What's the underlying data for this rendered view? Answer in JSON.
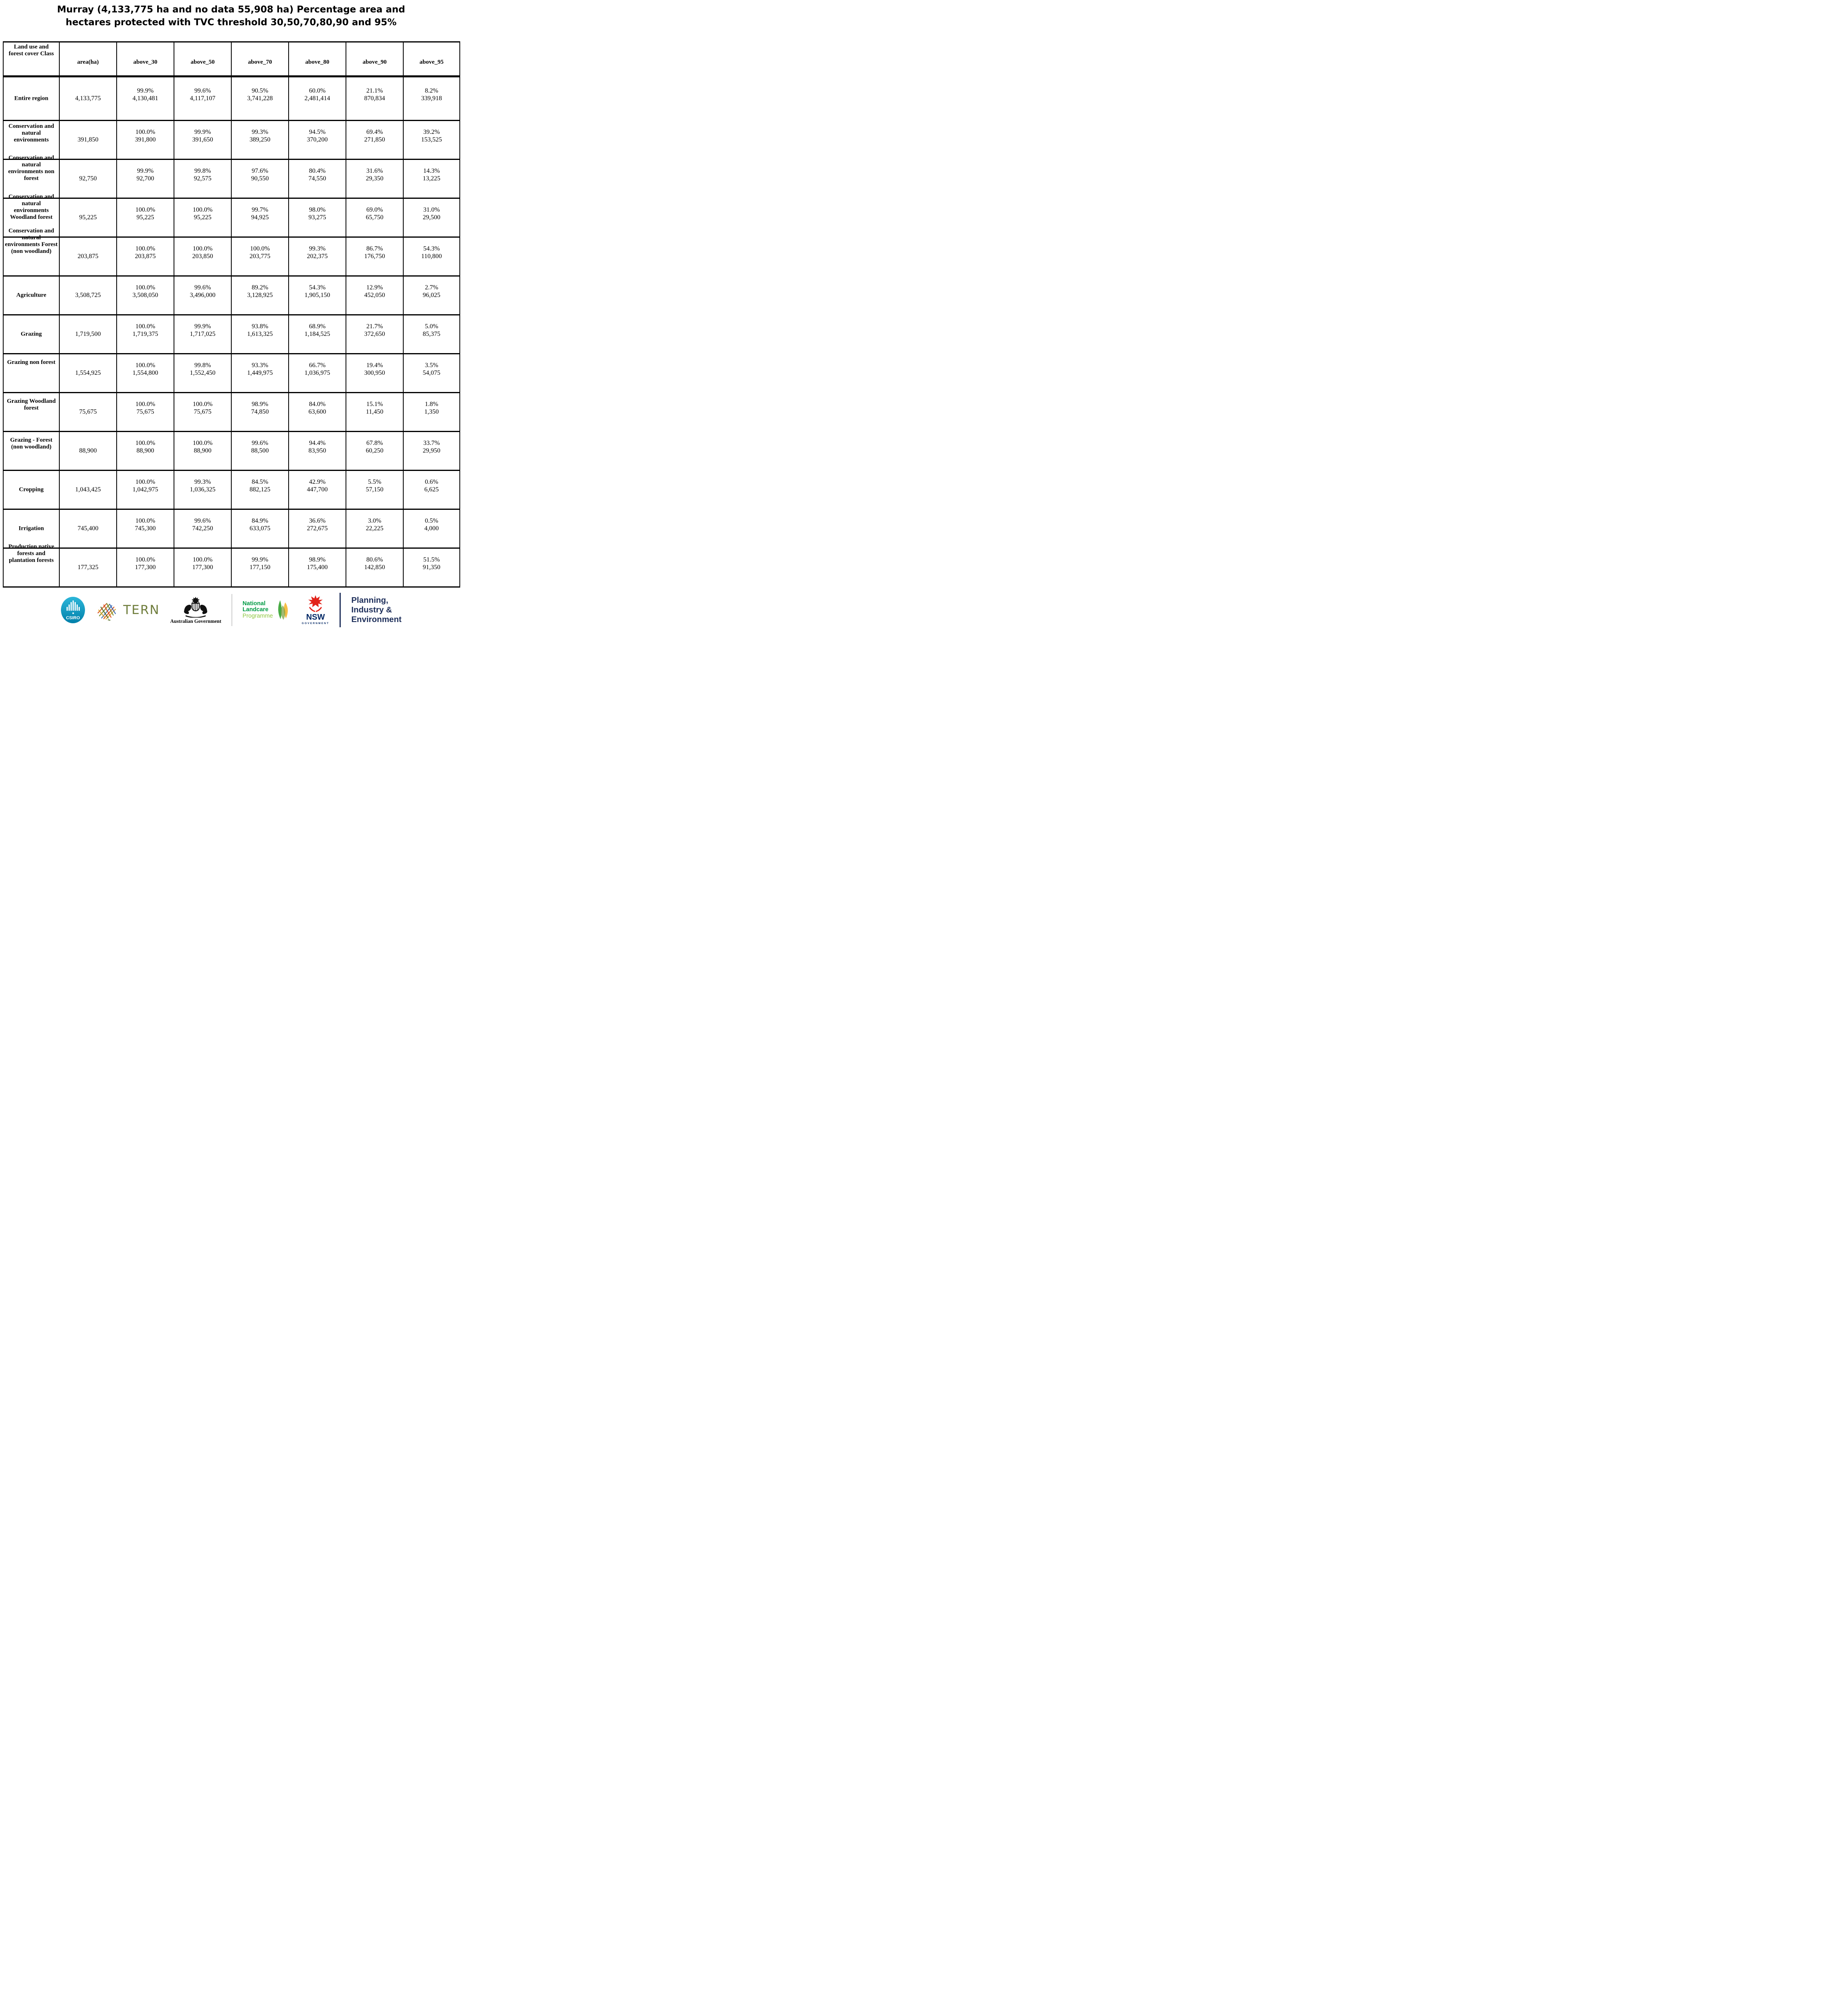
{
  "title": {
    "line1": "Murray (4,133,775 ha and no data 55,908 ha) Percentage area and",
    "line2": "hectares protected with TVC threshold 30,50,70,80,90 and 95%"
  },
  "table": {
    "columns": [
      "Land use and forest cover Class",
      "area(ha)",
      "above_30",
      "above_50",
      "above_70",
      "above_80",
      "above_90",
      "above_95"
    ],
    "rows": [
      {
        "label": "Entire region",
        "area": "4,133,775",
        "cells": [
          [
            "99.9%",
            "4,130,481"
          ],
          [
            "99.6%",
            "4,117,107"
          ],
          [
            "90.5%",
            "3,741,228"
          ],
          [
            "60.0%",
            "2,481,414"
          ],
          [
            "21.1%",
            "870,834"
          ],
          [
            "8.2%",
            "339,918"
          ]
        ]
      },
      {
        "label": "Conservation and natural environments",
        "area": "391,850",
        "cells": [
          [
            "100.0%",
            "391,800"
          ],
          [
            "99.9%",
            "391,650"
          ],
          [
            "99.3%",
            "389,250"
          ],
          [
            "94.5%",
            "370,200"
          ],
          [
            "69.4%",
            "271,850"
          ],
          [
            "39.2%",
            "153,525"
          ]
        ]
      },
      {
        "label": "Conservation and natural environments non forest",
        "area": "92,750",
        "cells": [
          [
            "99.9%",
            "92,700"
          ],
          [
            "99.8%",
            "92,575"
          ],
          [
            "97.6%",
            "90,550"
          ],
          [
            "80.4%",
            "74,550"
          ],
          [
            "31.6%",
            "29,350"
          ],
          [
            "14.3%",
            "13,225"
          ]
        ]
      },
      {
        "label": "Conservation and natural environments Woodland forest",
        "area": "95,225",
        "cells": [
          [
            "100.0%",
            "95,225"
          ],
          [
            "100.0%",
            "95,225"
          ],
          [
            "99.7%",
            "94,925"
          ],
          [
            "98.0%",
            "93,275"
          ],
          [
            "69.0%",
            "65,750"
          ],
          [
            "31.0%",
            "29,500"
          ]
        ]
      },
      {
        "label": "Conservation and natural environments Forest (non woodland)",
        "area": "203,875",
        "cells": [
          [
            "100.0%",
            "203,875"
          ],
          [
            "100.0%",
            "203,850"
          ],
          [
            "100.0%",
            "203,775"
          ],
          [
            "99.3%",
            "202,375"
          ],
          [
            "86.7%",
            "176,750"
          ],
          [
            "54.3%",
            "110,800"
          ]
        ]
      },
      {
        "label": "Agriculture",
        "area": "3,508,725",
        "cells": [
          [
            "100.0%",
            "3,508,050"
          ],
          [
            "99.6%",
            "3,496,000"
          ],
          [
            "89.2%",
            "3,128,925"
          ],
          [
            "54.3%",
            "1,905,150"
          ],
          [
            "12.9%",
            "452,050"
          ],
          [
            "2.7%",
            "96,025"
          ]
        ]
      },
      {
        "label": "Grazing",
        "area": "1,719,500",
        "cells": [
          [
            "100.0%",
            "1,719,375"
          ],
          [
            "99.9%",
            "1,717,025"
          ],
          [
            "93.8%",
            "1,613,325"
          ],
          [
            "68.9%",
            "1,184,525"
          ],
          [
            "21.7%",
            "372,650"
          ],
          [
            "5.0%",
            "85,375"
          ]
        ]
      },
      {
        "label": "Grazing non forest",
        "area": "1,554,925",
        "cells": [
          [
            "100.0%",
            "1,554,800"
          ],
          [
            "99.8%",
            "1,552,450"
          ],
          [
            "93.3%",
            "1,449,975"
          ],
          [
            "66.7%",
            "1,036,975"
          ],
          [
            "19.4%",
            "300,950"
          ],
          [
            "3.5%",
            "54,075"
          ]
        ]
      },
      {
        "label": "Grazing Woodland forest",
        "area": "75,675",
        "cells": [
          [
            "100.0%",
            "75,675"
          ],
          [
            "100.0%",
            "75,675"
          ],
          [
            "98.9%",
            "74,850"
          ],
          [
            "84.0%",
            "63,600"
          ],
          [
            "15.1%",
            "11,450"
          ],
          [
            "1.8%",
            "1,350"
          ]
        ]
      },
      {
        "label": "Grazing - Forest (non woodland)",
        "area": "88,900",
        "cells": [
          [
            "100.0%",
            "88,900"
          ],
          [
            "100.0%",
            "88,900"
          ],
          [
            "99.6%",
            "88,500"
          ],
          [
            "94.4%",
            "83,950"
          ],
          [
            "67.8%",
            "60,250"
          ],
          [
            "33.7%",
            "29,950"
          ]
        ]
      },
      {
        "label": "Cropping",
        "area": "1,043,425",
        "cells": [
          [
            "100.0%",
            "1,042,975"
          ],
          [
            "99.3%",
            "1,036,325"
          ],
          [
            "84.5%",
            "882,125"
          ],
          [
            "42.9%",
            "447,700"
          ],
          [
            "5.5%",
            "57,150"
          ],
          [
            "0.6%",
            "6,625"
          ]
        ]
      },
      {
        "label": "Irrigation",
        "area": "745,400",
        "cells": [
          [
            "100.0%",
            "745,300"
          ],
          [
            "99.6%",
            "742,250"
          ],
          [
            "84.9%",
            "633,075"
          ],
          [
            "36.6%",
            "272,675"
          ],
          [
            "3.0%",
            "22,225"
          ],
          [
            "0.5%",
            "4,000"
          ]
        ]
      },
      {
        "label": "Production native forests and plantation forests",
        "area": "177,325",
        "cells": [
          [
            "100.0%",
            "177,300"
          ],
          [
            "100.0%",
            "177,300"
          ],
          [
            "99.9%",
            "177,150"
          ],
          [
            "98.9%",
            "175,400"
          ],
          [
            "80.6%",
            "142,850"
          ],
          [
            "51.5%",
            "91,350"
          ]
        ]
      }
    ]
  },
  "footer": {
    "csiro": {
      "label": "CSIRO",
      "teal_top": "#2cb6d9",
      "teal_bottom": "#0080aa"
    },
    "tern": {
      "label": "TERN",
      "color": "#6f7d3c"
    },
    "aus_gov": {
      "label": "Australian Government"
    },
    "landcare": {
      "line1": "National",
      "line2": "Landcare",
      "line3": "Programme",
      "green": "#009a44",
      "light_green": "#8dc63f"
    },
    "nsw": {
      "abbr": "NSW",
      "gov": "GOVERNMENT",
      "navy": "#002664",
      "red": "#e2231a"
    },
    "dept": {
      "line1": "Planning,",
      "line2": "Industry &",
      "line3": "Environment",
      "color": "#1d2e5a"
    }
  }
}
